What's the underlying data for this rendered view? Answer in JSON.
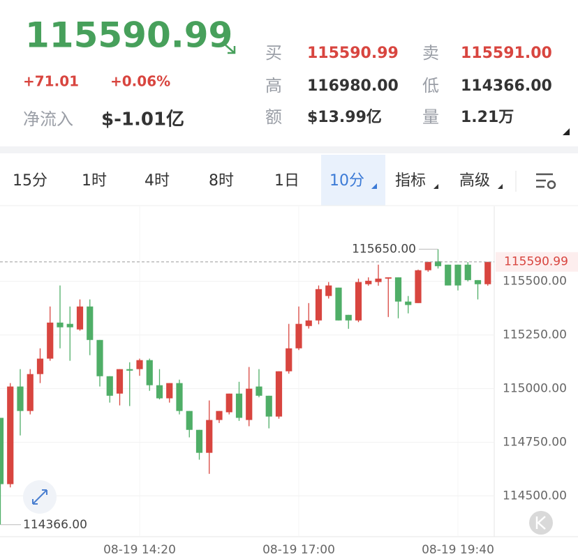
{
  "header": {
    "price": "115590.99",
    "change": "+71.01",
    "change_pct": "+0.06%",
    "net_inflow": {
      "label": "净流入",
      "value": "$-1.01亿"
    },
    "stats": [
      {
        "label": "买",
        "value": "115590.99"
      },
      {
        "label": "卖",
        "value": "115591.00"
      },
      {
        "label": "高",
        "value": "116980.00"
      },
      {
        "label": "低",
        "value": "114366.00"
      },
      {
        "label": "额",
        "value": "$13.99亿"
      },
      {
        "label": "量",
        "value": "1.21万"
      }
    ]
  },
  "tabs": [
    "15分",
    "1时",
    "4时",
    "8时",
    "1日",
    "10分",
    "指标",
    "高级"
  ],
  "chart_data": {
    "type": "candlestick",
    "up_color": "#d8453f",
    "down_color": "#4fae67",
    "categories": [
      null,
      null,
      null,
      null,
      null,
      null,
      null,
      null,
      null,
      null,
      null,
      null,
      null,
      null,
      "08-19 14:20",
      null,
      null,
      null,
      null,
      null,
      null,
      null,
      null,
      null,
      null,
      null,
      null,
      null,
      null,
      null,
      "08-19 17:00",
      null,
      null,
      null,
      null,
      null,
      null,
      null,
      null,
      null,
      null,
      null,
      null,
      null,
      null,
      null,
      "08-19 19:40",
      null,
      null,
      null
    ],
    "open": [
      114864,
      114555,
      115010,
      114896,
      115068,
      115140,
      115308,
      115302,
      115276,
      115383,
      115227,
      115058,
      114977,
      115091,
      115091,
      115133,
      115016,
      114955,
      115026,
      114896,
      114808,
      114701,
      114854,
      114890,
      114977,
      114854,
      115010,
      114967,
      114870,
      115081,
      115188,
      115292,
      115318,
      115432,
      115471,
      115344,
      115318,
      115487,
      115497,
      115513,
      115519,
      115406,
      115399,
      115552,
      115594,
      115578,
      115578,
      115578,
      115506,
      115487
    ],
    "high": [
      114864,
      115026,
      115091,
      115091,
      115188,
      115383,
      115481,
      115383,
      115416,
      115416,
      115227,
      115058,
      115091,
      115123,
      115140,
      115140,
      115091,
      115026,
      115042,
      114896,
      114808,
      114945,
      114896,
      114977,
      115032,
      115101,
      115091,
      114967,
      115081,
      115302,
      115383,
      115399,
      115481,
      115497,
      115471,
      115344,
      115513,
      115519,
      115578,
      115519,
      115519,
      115432,
      115555,
      115591,
      115650,
      115578,
      115578,
      115590,
      115506,
      115591
    ],
    "low": [
      114366,
      114540,
      114782,
      114880,
      115026,
      115130,
      115188,
      115130,
      115270,
      115156,
      115010,
      114935,
      114922,
      114919,
      115060,
      114990,
      114950,
      114935,
      114880,
      114773,
      114669,
      114603,
      114840,
      114880,
      114850,
      114825,
      114960,
      114815,
      114860,
      115070,
      115180,
      115280,
      115300,
      115420,
      115318,
      115279,
      115310,
      115480,
      115480,
      115334,
      115328,
      115351,
      115399,
      115545,
      115560,
      115481,
      115458,
      115500,
      115416,
      115480
    ],
    "close": [
      114555,
      115010,
      114896,
      115068,
      115140,
      115308,
      115286,
      115286,
      115383,
      115227,
      115058,
      114967,
      115091,
      115084,
      115133,
      115016,
      114955,
      115026,
      114896,
      114808,
      114701,
      114854,
      114896,
      114977,
      114864,
      115000,
      114967,
      114870,
      115081,
      115188,
      115302,
      115318,
      115464,
      115481,
      115318,
      115318,
      115497,
      115503,
      115513,
      115519,
      115406,
      115390,
      115552,
      115591,
      115571,
      115481,
      115481,
      115506,
      115487,
      115590.99
    ],
    "ylim": [
      114310,
      115850
    ],
    "yticks": [
      {
        "value": 114500,
        "label": "114500.00"
      },
      {
        "value": 114750,
        "label": "114750.00"
      },
      {
        "value": 115000,
        "label": "115000.00"
      },
      {
        "value": 115250,
        "label": "115250.00"
      },
      {
        "value": 115500,
        "label": "115500.00"
      }
    ],
    "grid": true,
    "current_price": {
      "value": 115590.99,
      "label": "115590.99"
    },
    "max_marker": {
      "value": 115650,
      "label": "115650.00",
      "index": 44
    },
    "min_marker": {
      "value": 114366,
      "label": "114366.00",
      "index": 0
    }
  }
}
